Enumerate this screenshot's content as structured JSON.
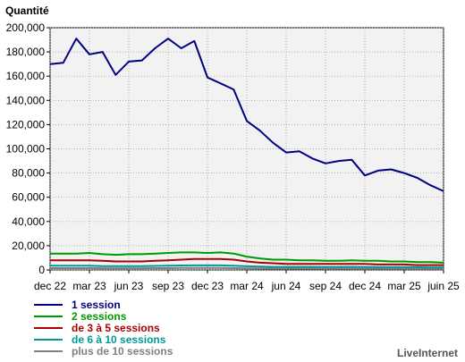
{
  "chart_data": {
    "type": "line",
    "title": "Quantité",
    "ylim": [
      0,
      200000
    ],
    "y_ticks": [
      "0",
      "20,000",
      "40,000",
      "60,000",
      "80,000",
      "100,000",
      "120,000",
      "140,000",
      "160,000",
      "180,000",
      "200,000"
    ],
    "x_tick_labels": [
      "dec 22",
      "mar 23",
      "jun 23",
      "sep 23",
      "dec 23",
      "mar 24",
      "jun 24",
      "sep 24",
      "dec 24",
      "mar 25",
      "juin 25"
    ],
    "grid": true,
    "legend_position": "bottom-left",
    "series": [
      {
        "name": "1 session",
        "color": "#000080",
        "values": [
          170000,
          171000,
          191000,
          178000,
          180000,
          161000,
          172000,
          173000,
          183000,
          191000,
          183000,
          189000,
          159000,
          154000,
          149000,
          123000,
          115000,
          105000,
          97000,
          98000,
          92000,
          88000,
          90000,
          91000,
          78000,
          82000,
          83000,
          80000,
          76000,
          70000,
          65000
        ]
      },
      {
        "name": "2 sessions",
        "color": "#009900",
        "values": [
          13500,
          13500,
          13500,
          14000,
          13000,
          12500,
          13000,
          13000,
          13500,
          14000,
          14500,
          14500,
          14000,
          14500,
          13500,
          11000,
          9500,
          8500,
          8500,
          8000,
          8000,
          7500,
          7500,
          8000,
          7500,
          7500,
          7000,
          7000,
          6500,
          6500,
          6000
        ]
      },
      {
        "name": "de 3 à 5 sessions",
        "color": "#aa0000",
        "values": [
          8000,
          8000,
          8000,
          8000,
          7500,
          7000,
          7000,
          7000,
          7500,
          8000,
          8500,
          9000,
          9000,
          9000,
          8500,
          7000,
          6000,
          5500,
          5000,
          5000,
          5000,
          5000,
          5000,
          5000,
          5000,
          4500,
          4500,
          4500,
          4000,
          4000,
          4000
        ]
      },
      {
        "name": "de 6 à 10 sessions",
        "color": "#009999",
        "values": [
          3500,
          3500,
          3500,
          3500,
          3200,
          3200,
          3200,
          3200,
          3300,
          3500,
          3700,
          3800,
          3800,
          3800,
          3500,
          3000,
          2800,
          2500,
          2500,
          2500,
          2500,
          2400,
          2400,
          2500,
          2400,
          2300,
          2300,
          2300,
          2200,
          2100,
          2000
        ]
      },
      {
        "name": "plus de 10 sessions",
        "color": "#808080",
        "values": [
          1500,
          1500,
          1500,
          1500,
          1400,
          1400,
          1400,
          1400,
          1500,
          1500,
          1600,
          1600,
          1600,
          1600,
          1500,
          1300,
          1200,
          1100,
          1100,
          1100,
          1100,
          1000,
          1000,
          1000,
          1000,
          1000,
          1000,
          1000,
          900,
          900,
          900
        ]
      }
    ]
  },
  "credit": "LiveInternet"
}
